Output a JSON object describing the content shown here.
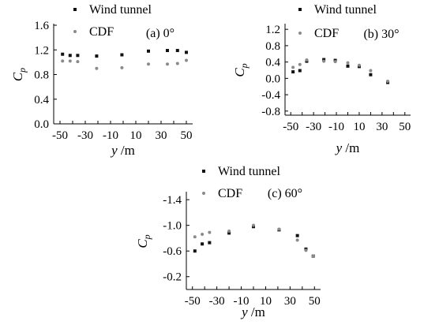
{
  "chart_data": [
    {
      "type": "scatter",
      "panel_label": "(a) 0°",
      "xlabel": "y /m",
      "ylabel": "Cp",
      "xlim": [
        -55,
        55
      ],
      "ylim": [
        0.0,
        1.6
      ],
      "xticks": [
        -50,
        -40,
        -30,
        -20,
        -10,
        0,
        10,
        20,
        30,
        40,
        50
      ],
      "xtick_labels": [
        "-50",
        "-40",
        "-30",
        "-20",
        "-10",
        "0",
        "10",
        "20",
        "30",
        "40",
        "50"
      ],
      "yticks": [
        0.0,
        0.4,
        0.8,
        1.2,
        1.6
      ],
      "ytick_labels": [
        "0.0",
        "0.4",
        "0.8",
        "1.2",
        "1.6"
      ],
      "series": [
        {
          "name": "Wind tunnel",
          "x": [
            -48,
            -42,
            -36,
            -21,
            -1,
            20,
            35,
            43,
            50
          ],
          "y": [
            1.13,
            1.11,
            1.11,
            1.1,
            1.12,
            1.18,
            1.19,
            1.19,
            1.16
          ]
        },
        {
          "name": "CDF",
          "x": [
            -48,
            -42,
            -36,
            -21,
            -1,
            20,
            35,
            43,
            50
          ],
          "y": [
            1.02,
            1.02,
            1.01,
            0.9,
            0.91,
            0.97,
            0.97,
            0.98,
            1.03
          ]
        }
      ]
    },
    {
      "type": "scatter",
      "panel_label": "(b) 30°",
      "xlabel": "y /m",
      "ylabel": "Cp",
      "xlim": [
        -55,
        55
      ],
      "ylim": [
        -0.9,
        1.3
      ],
      "xticks": [
        -50,
        -40,
        -30,
        -20,
        -10,
        0,
        10,
        20,
        30,
        40,
        50
      ],
      "xtick_labels": [
        "-50",
        "-40",
        "-30",
        "-20",
        "-10",
        "0",
        "10",
        "20",
        "30",
        "40",
        "50"
      ],
      "yticks": [
        -0.8,
        -0.4,
        0.0,
        0.4,
        0.8,
        1.2
      ],
      "ytick_labels": [
        "-0.8",
        "-0.4",
        "0.0",
        "0.4",
        "0.8",
        "1.2"
      ],
      "series": [
        {
          "name": "Wind tunnel",
          "x": [
            -48,
            -42,
            -36,
            -21,
            -11,
            0,
            10,
            20,
            35
          ],
          "y": [
            0.16,
            0.19,
            0.42,
            0.46,
            0.44,
            0.3,
            0.29,
            0.09,
            -0.1
          ]
        },
        {
          "name": "CDF",
          "x": [
            -48,
            -42,
            -36,
            -21,
            -11,
            0,
            10,
            20,
            35
          ],
          "y": [
            0.27,
            0.34,
            0.45,
            0.42,
            0.41,
            0.38,
            0.32,
            0.19,
            -0.07
          ]
        }
      ]
    },
    {
      "type": "scatter",
      "panel_label": "(c) 60°",
      "xlabel": "y /m",
      "ylabel": "Cp",
      "xlim": [
        -55,
        55
      ],
      "ylim": [
        0.0,
        -1.5
      ],
      "yaxis_inverted": true,
      "xticks": [
        -50,
        -40,
        -30,
        -20,
        -10,
        0,
        10,
        20,
        30,
        40,
        50
      ],
      "xtick_labels": [
        "-50",
        "-40",
        "-30",
        "-20",
        "-10",
        "0",
        "10",
        "20",
        "30",
        "40",
        "50"
      ],
      "yticks": [
        -0.2,
        -0.6,
        -1.0,
        -1.4
      ],
      "ytick_labels": [
        "-0.2",
        "-0.6",
        "-1.0",
        "-1.4"
      ],
      "series": [
        {
          "name": "Wind tunnel",
          "x": [
            -48,
            -42,
            -36,
            -20,
            0,
            21,
            36,
            43,
            49
          ],
          "y": [
            -0.6,
            -0.71,
            -0.73,
            -0.88,
            -0.98,
            -0.93,
            -0.84,
            -0.63,
            -0.52
          ]
        },
        {
          "name": "CDF",
          "x": [
            -48,
            -42,
            -36,
            -20,
            0,
            21,
            36,
            43,
            49
          ],
          "y": [
            -0.82,
            -0.86,
            -0.89,
            -0.91,
            -1.0,
            -0.94,
            -0.77,
            -0.61,
            -0.52
          ]
        }
      ]
    }
  ],
  "series_colors": {
    "Wind tunnel": "#111111",
    "CDF": "#8a8a8a"
  }
}
